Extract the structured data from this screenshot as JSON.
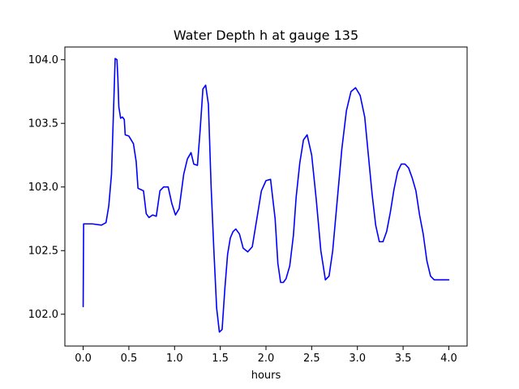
{
  "chart_data": {
    "type": "line",
    "title": "Water Depth h at gauge 135",
    "xlabel": "hours",
    "ylabel": "",
    "xlim": [
      -0.2,
      4.2
    ],
    "ylim": [
      101.75,
      104.1
    ],
    "xticks": [
      0.0,
      0.5,
      1.0,
      1.5,
      2.0,
      2.5,
      3.0,
      3.5,
      4.0
    ],
    "xtick_labels": [
      "0.0",
      "0.5",
      "1.0",
      "1.5",
      "2.0",
      "2.5",
      "3.0",
      "3.5",
      "4.0"
    ],
    "yticks": [
      102.0,
      102.5,
      103.0,
      103.5,
      104.0
    ],
    "ytick_labels": [
      "102.0",
      "102.5",
      "103.0",
      "103.5",
      "104.0"
    ],
    "grid": false,
    "legend": "none",
    "series": [
      {
        "color": "#0000ff",
        "x": [
          0.0,
          0.005,
          0.01,
          0.1,
          0.2,
          0.25,
          0.28,
          0.31,
          0.33,
          0.35,
          0.37,
          0.38,
          0.39,
          0.41,
          0.43,
          0.45,
          0.46,
          0.5,
          0.55,
          0.58,
          0.6,
          0.63,
          0.66,
          0.69,
          0.72,
          0.76,
          0.8,
          0.84,
          0.88,
          0.93,
          0.97,
          1.01,
          1.05,
          1.1,
          1.14,
          1.18,
          1.21,
          1.25,
          1.28,
          1.31,
          1.34,
          1.37,
          1.4,
          1.43,
          1.46,
          1.49,
          1.52,
          1.55,
          1.58,
          1.61,
          1.64,
          1.67,
          1.71,
          1.75,
          1.8,
          1.85,
          1.9,
          1.95,
          2.0,
          2.05,
          2.1,
          2.13,
          2.16,
          2.19,
          2.22,
          2.26,
          2.3,
          2.33,
          2.37,
          2.41,
          2.45,
          2.5,
          2.55,
          2.6,
          2.65,
          2.69,
          2.73,
          2.78,
          2.83,
          2.88,
          2.93,
          2.98,
          3.03,
          3.08,
          3.12,
          3.16,
          3.2,
          3.24,
          3.28,
          3.32,
          3.36,
          3.4,
          3.44,
          3.48,
          3.52,
          3.56,
          3.6,
          3.64,
          3.68,
          3.72,
          3.76,
          3.8,
          3.84,
          3.88,
          3.92,
          3.96,
          4.0
        ],
        "y": [
          102.06,
          102.71,
          102.71,
          102.71,
          102.7,
          102.72,
          102.85,
          103.1,
          103.55,
          104.01,
          104.0,
          103.85,
          103.63,
          103.54,
          103.55,
          103.53,
          103.41,
          103.4,
          103.34,
          103.2,
          102.99,
          102.98,
          102.97,
          102.79,
          102.76,
          102.78,
          102.77,
          102.97,
          103.0,
          103.0,
          102.87,
          102.78,
          102.83,
          103.1,
          103.22,
          103.27,
          103.18,
          103.17,
          103.45,
          103.77,
          103.8,
          103.65,
          103.0,
          102.5,
          102.05,
          101.86,
          101.88,
          102.2,
          102.47,
          102.6,
          102.65,
          102.67,
          102.63,
          102.52,
          102.49,
          102.53,
          102.75,
          102.97,
          103.05,
          103.06,
          102.75,
          102.4,
          102.25,
          102.25,
          102.28,
          102.38,
          102.62,
          102.92,
          103.19,
          103.37,
          103.41,
          103.25,
          102.9,
          102.5,
          102.27,
          102.3,
          102.5,
          102.9,
          103.3,
          103.6,
          103.75,
          103.78,
          103.72,
          103.55,
          103.25,
          102.95,
          102.7,
          102.57,
          102.57,
          102.65,
          102.8,
          102.98,
          103.12,
          103.18,
          103.18,
          103.15,
          103.07,
          102.97,
          102.78,
          102.63,
          102.42,
          102.3,
          102.27,
          102.27,
          102.27,
          102.27,
          102.27
        ]
      }
    ]
  }
}
